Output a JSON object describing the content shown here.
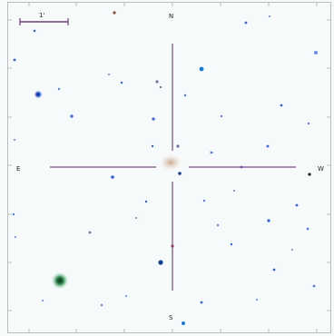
{
  "scale_bar": {
    "label": "1'"
  },
  "compass": {
    "north": "N",
    "south": "S",
    "east": "E",
    "west": "W"
  },
  "colors": {
    "background": "#f7fafa",
    "frame": "#b9bdbd",
    "crosshair": "#7b4a84",
    "scale_bar": "#6a3e79",
    "star_blue": "#2e62e3",
    "star_dark": "#0c2a52",
    "star_green": "#175c33"
  },
  "target": {
    "name": "galaxy",
    "color": "#c9a58c"
  }
}
